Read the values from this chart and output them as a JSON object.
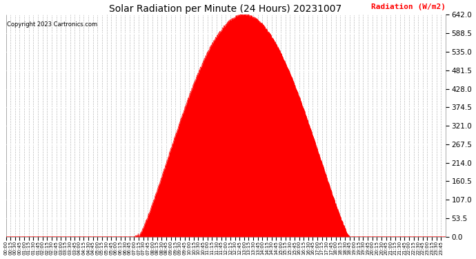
{
  "title": "Solar Radiation per Minute (24 Hours) 20231007",
  "copyright": "Copyright 2023 Cartronics.com",
  "ylabel": "Radiation (W/m2)",
  "ylabel_color": "#ff0000",
  "copyright_color": "#000000",
  "fill_color": "#ff0000",
  "line_color": "#ff0000",
  "bg_color": "#ffffff",
  "grid_color": "#aaaaaa",
  "hline_color": "#ff0000",
  "ymax": 642.0,
  "yticks": [
    0.0,
    53.5,
    107.0,
    160.5,
    214.0,
    267.5,
    321.0,
    374.5,
    428.0,
    481.5,
    535.0,
    588.5,
    642.0
  ],
  "total_minutes": 1440,
  "sunrise_minute": 435,
  "sunset_minute": 1125,
  "peak_minute": 757,
  "peak_value": 642.0,
  "xtick_minutes": [
    0,
    15,
    30,
    45,
    60,
    75,
    90,
    105,
    120,
    135,
    150,
    165,
    180,
    195,
    210,
    225,
    240,
    255,
    270,
    285,
    300,
    315,
    330,
    345,
    360,
    375,
    390,
    405,
    420,
    435,
    450,
    465,
    480,
    495,
    510,
    525,
    540,
    555,
    570,
    585,
    600,
    615,
    630,
    645,
    660,
    675,
    690,
    705,
    720,
    735,
    750,
    765,
    780,
    795,
    810,
    825,
    840,
    855,
    870,
    885,
    900,
    915,
    930,
    945,
    960,
    975,
    990,
    1005,
    1020,
    1035,
    1050,
    1065,
    1080,
    1095,
    1110,
    1125,
    1140,
    1155,
    1170,
    1185,
    1200,
    1215,
    1230,
    1245,
    1260,
    1275,
    1290,
    1305,
    1320,
    1335,
    1350,
    1365,
    1380,
    1395,
    1410,
    1425
  ]
}
